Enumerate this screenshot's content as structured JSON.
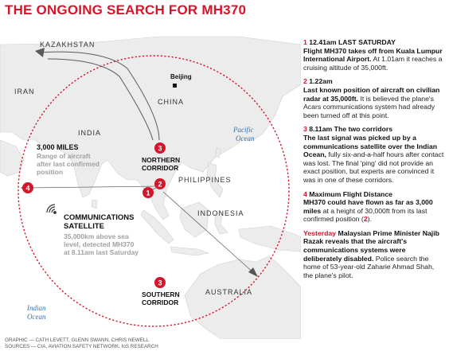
{
  "title": "THE ONGOING SEARCH FOR MH370",
  "map": {
    "countries": {
      "kazakhstan": "KAZAKHSTAN",
      "iran": "IRAN",
      "china": "CHINA",
      "india": "INDIA",
      "philippines": "PHILIPPINES",
      "indonesia": "INDONESIA",
      "australia": "AUSTRALIA"
    },
    "city_beijing": "Beijing",
    "ocean_pacific": [
      "Pacific",
      "Ocean"
    ],
    "ocean_indian": [
      "Indian",
      "Ocean"
    ],
    "range_title": "3,000 MILES",
    "range_sub": [
      "Range of aircraft",
      "after last confirmed",
      "position"
    ],
    "northern_corridor": [
      "NORTHERN",
      "CORRIDOR"
    ],
    "southern_corridor": [
      "SOUTHERN",
      "CORRIDOR"
    ],
    "satellite_title": [
      "COMMUNICATIONS",
      "SATELLITE"
    ],
    "satellite_sub": [
      "35,000km above sea",
      "level, detected MH370",
      "at 8.11am last Saturday"
    ],
    "markers": {
      "m1": "1",
      "m2": "2",
      "m3n": "3",
      "m3s": "3",
      "m4": "4"
    },
    "colors": {
      "accent": "#d5152a",
      "land": "#ececec",
      "sea": "#ffffff",
      "circle": "#d5152a"
    }
  },
  "timeline": {
    "i1": {
      "num": "1",
      "head": "12.41am LAST SATURDAY",
      "lead": "Flight MH370 takes off from Kuala Lumpur International Airport.",
      "rest": "At 1.01am it reaches a cruising altitude of 35,000ft."
    },
    "i2": {
      "num": "2",
      "head": "1.22am",
      "lead": "Last known position of aircraft on civilian radar at 35,000ft.",
      "rest": "It is believed the plane's Acars communications system had already been turned off at this point."
    },
    "i3": {
      "num": "3",
      "head": "8.11am The two corridors",
      "lead": "The last signal was picked up by a communications satellite over the Indian Ocean,",
      "rest": "fully six-and-a-half hours after contact was lost. The final 'ping' did not provide an exact position, but experts are convinced it was in one of these corridors."
    },
    "i4": {
      "num": "4",
      "head": "Maximum Flight Distance",
      "lead": "MH370 could have flown as far as 3,000 miles",
      "rest": "at a height of 30,000ft from its last confirmed position (",
      "ref": "2",
      "close": ")."
    },
    "i5": {
      "head": "Yesterday",
      "lead": "Malaysian Prime Minister Najib Razak reveals that the aircraft's communications systems were deliberately disabled.",
      "rest": "Police search the home of 53-year-old Zaharie Ahmad Shah, the plane's pilot."
    }
  },
  "credits": {
    "graphic": "GRAPHIC — CATH LEVETT, GLENN SWANN, CHRIS NEWELL",
    "sources": "SOURCES — CIA, AVIATION SAFETY NETWORK, IoS RESEARCH"
  }
}
